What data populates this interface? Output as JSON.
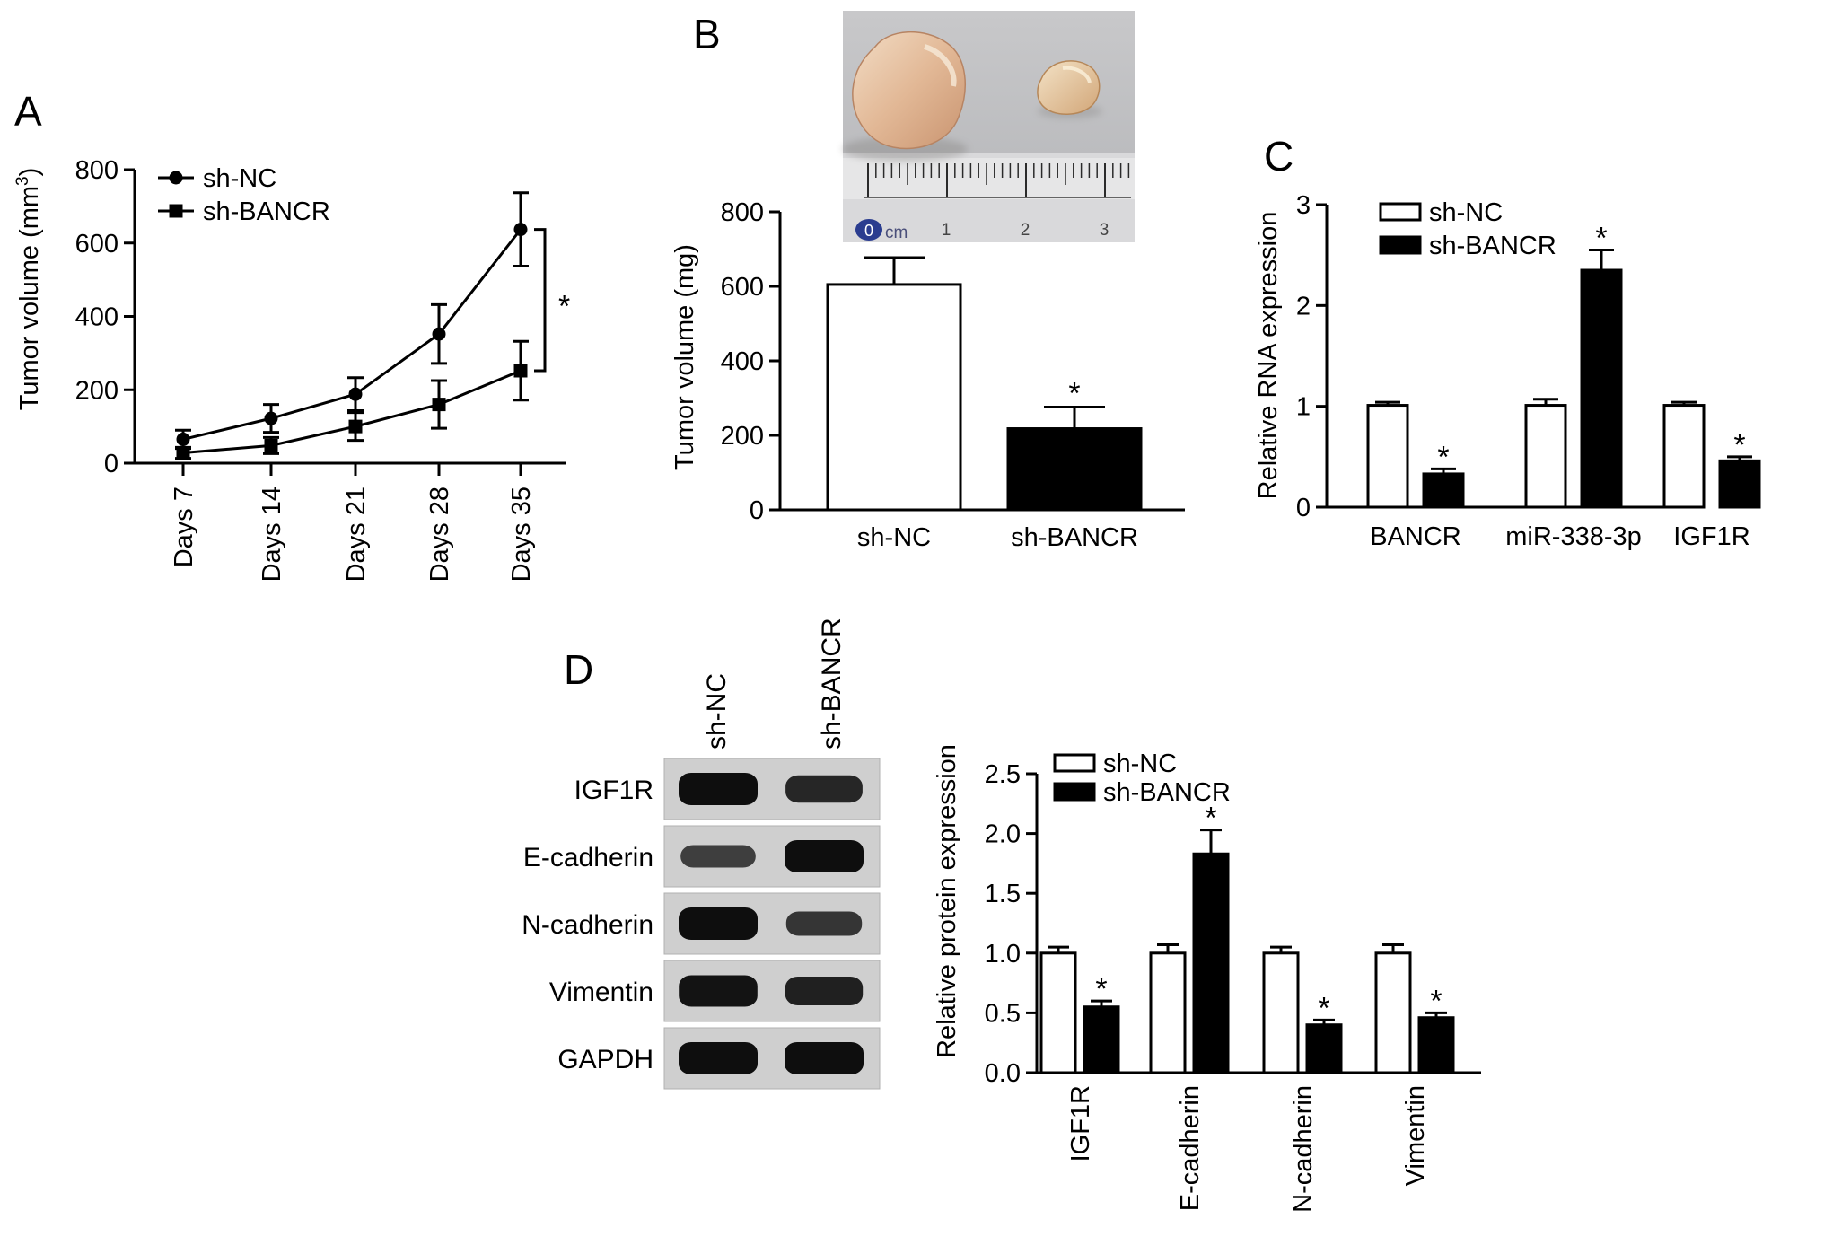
{
  "panels": {
    "A": {
      "label": "A"
    },
    "B": {
      "label": "B"
    },
    "C": {
      "label": "C"
    },
    "D": {
      "label": "D"
    }
  },
  "photo": {
    "ruler_zero": "0",
    "ruler_unit": "cm",
    "ruler_ticks": [
      "1",
      "2",
      "3"
    ]
  },
  "blot": {
    "lanes": [
      "sh-NC",
      "sh-BANCR"
    ],
    "rows": [
      {
        "label": "IGF1R",
        "intensity": [
          1.0,
          0.72
        ]
      },
      {
        "label": "E-cadherin",
        "intensity": [
          0.45,
          1.0
        ]
      },
      {
        "label": "N-cadherin",
        "intensity": [
          1.0,
          0.55
        ]
      },
      {
        "label": "Vimentin",
        "intensity": [
          0.95,
          0.8
        ]
      },
      {
        "label": "GAPDH",
        "intensity": [
          1.0,
          1.0
        ]
      }
    ]
  },
  "chart_data": [
    {
      "id": "A",
      "type": "line",
      "title": "",
      "ylabel": "Tumor volume (mm³)",
      "ylabel_main": "Tumor volume (mm",
      "ylabel_sup": "3",
      "ylabel_close": ")",
      "xlabel": "",
      "categories": [
        "Days 7",
        "Days 14",
        "Days 21",
        "Days 28",
        "Days 35"
      ],
      "ylim": [
        0,
        800
      ],
      "yticks": [
        "0",
        "200",
        "400",
        "600",
        "800"
      ],
      "legend_position": "top-left",
      "significance": "*",
      "series": [
        {
          "name": "sh-NC",
          "marker": "circle",
          "values": [
            65,
            122,
            188,
            352,
            637
          ],
          "errors": [
            25,
            38,
            45,
            80,
            100
          ]
        },
        {
          "name": "sh-BANCR",
          "marker": "square",
          "values": [
            28,
            48,
            100,
            160,
            252
          ],
          "errors": [
            15,
            22,
            38,
            65,
            80
          ]
        }
      ]
    },
    {
      "id": "B",
      "type": "bar",
      "title": "",
      "ylabel": "Tumor volume (mg)",
      "xlabel": "",
      "categories": [
        "sh-NC",
        "sh-BANCR"
      ],
      "ylim": [
        0,
        800
      ],
      "yticks": [
        "0",
        "200",
        "400",
        "600",
        "800"
      ],
      "values": [
        605,
        218
      ],
      "errors": [
        72,
        58
      ],
      "fills": [
        "#ffffff",
        "#000000"
      ],
      "significance": [
        "",
        "*"
      ]
    },
    {
      "id": "C",
      "type": "bar",
      "title": "",
      "ylabel": "Relative RNA expression",
      "xlabel": "",
      "categories": [
        "BANCR",
        "miR-338-3p",
        "IGF1R"
      ],
      "ylim": [
        0,
        3
      ],
      "yticks": [
        "0",
        "1",
        "2",
        "3"
      ],
      "legend_position": "top-left",
      "series": [
        {
          "name": "sh-NC",
          "fill": "#ffffff",
          "values": [
            1.01,
            1.01,
            1.01
          ],
          "errors": [
            0.03,
            0.06,
            0.03
          ],
          "significance": [
            "",
            "",
            ""
          ]
        },
        {
          "name": "sh-BANCR",
          "fill": "#000000",
          "values": [
            0.33,
            2.35,
            0.46
          ],
          "errors": [
            0.05,
            0.2,
            0.04
          ],
          "significance": [
            "*",
            "*",
            "*"
          ]
        }
      ]
    },
    {
      "id": "D",
      "type": "bar",
      "title": "",
      "ylabel": "Relative protein expression",
      "xlabel": "",
      "categories": [
        "IGF1R",
        "E-cadherin",
        "N-cadherin",
        "Vimentin"
      ],
      "ylim": [
        0,
        2.5
      ],
      "yticks": [
        "0.0",
        "0.5",
        "1.0",
        "1.5",
        "2.0",
        "2.5"
      ],
      "legend_position": "top-left",
      "series": [
        {
          "name": "sh-NC",
          "fill": "#ffffff",
          "values": [
            1.0,
            1.0,
            1.0,
            1.0
          ],
          "errors": [
            0.05,
            0.07,
            0.05,
            0.07
          ],
          "significance": [
            "",
            "",
            "",
            ""
          ]
        },
        {
          "name": "sh-BANCR",
          "fill": "#000000",
          "values": [
            0.55,
            1.83,
            0.4,
            0.46
          ],
          "errors": [
            0.05,
            0.2,
            0.04,
            0.04
          ],
          "significance": [
            "*",
            "*",
            "*",
            "*"
          ]
        }
      ]
    }
  ]
}
